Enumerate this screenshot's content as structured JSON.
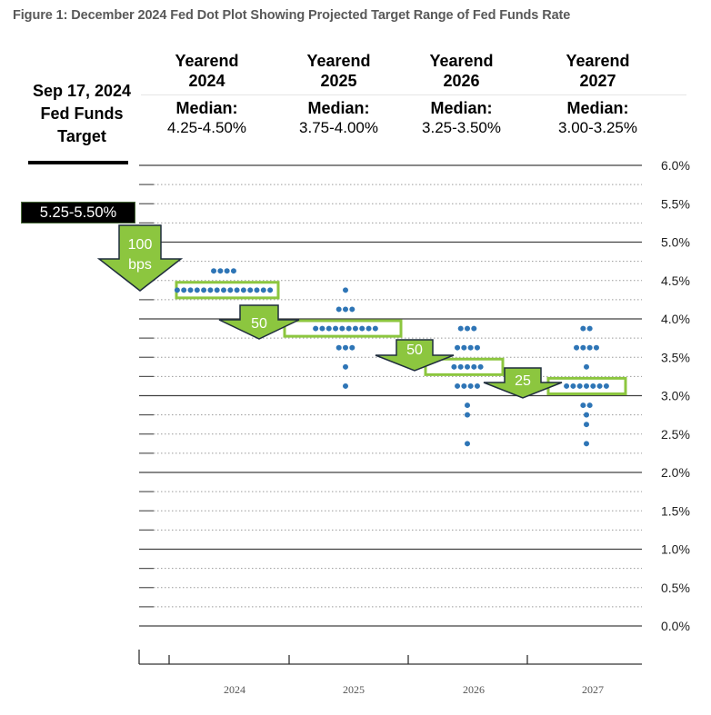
{
  "title": "Figure 1: December 2024 Fed Dot Plot Showing Projected Target Range of Fed Funds Rate",
  "current_target": {
    "label_lines": [
      "Sep 17, 2024",
      "Fed Funds",
      "Target"
    ],
    "value": "5.25-5.50%"
  },
  "columns": [
    {
      "yearend": "Yearend",
      "year": "2024",
      "median_label": "Median:",
      "median": "4.25-4.50%"
    },
    {
      "yearend": "Yearend",
      "year": "2025",
      "median_label": "Median:",
      "median": "3.75-4.00%"
    },
    {
      "yearend": "Yearend",
      "year": "2026",
      "median_label": "Median:",
      "median": "3.25-3.50%"
    },
    {
      "yearend": "Yearend",
      "year": "2027",
      "median_label": "Median:",
      "median": "3.00-3.25%"
    }
  ],
  "colors": {
    "dot": "#2e75b6",
    "arrow_fill": "#8cc63f",
    "arrow_stroke": "#1f2d3d",
    "median_box": "#8cc63f",
    "grid_solid": "#404040",
    "grid_dotted": "#9a9a9a"
  },
  "arrows": [
    {
      "label_lines": [
        "100",
        "bps"
      ],
      "from": "current",
      "to": "2024"
    },
    {
      "label_lines": [
        "50"
      ],
      "from": "2024",
      "to": "2025"
    },
    {
      "label_lines": [
        "50"
      ],
      "from": "2025",
      "to": "2026"
    },
    {
      "label_lines": [
        "25"
      ],
      "from": "2026",
      "to": "2027"
    }
  ],
  "chart_data": {
    "type": "scatter",
    "title": "Figure 1: December 2024 Fed Dot Plot Showing Projected Target Range of Fed Funds Rate",
    "xlabel": "",
    "ylabel": "",
    "categories": [
      "2024",
      "2025",
      "2026",
      "2027"
    ],
    "ylim": [
      0,
      6
    ],
    "yticks": [
      "0.0%",
      "0.5%",
      "1.0%",
      "1.5%",
      "2.0%",
      "2.5%",
      "3.0%",
      "3.5%",
      "4.0%",
      "4.5%",
      "5.0%",
      "5.5%",
      "6.0%"
    ],
    "y_axis_side": "right",
    "grid": "solid at whole percent, dotted at 0.25% steps",
    "series": [
      {
        "name": "2024",
        "dots": [
          {
            "value": 4.625,
            "count": 4
          },
          {
            "value": 4.375,
            "count": 15
          }
        ]
      },
      {
        "name": "2025",
        "dots": [
          {
            "value": 4.375,
            "count": 1
          },
          {
            "value": 4.125,
            "count": 3
          },
          {
            "value": 3.875,
            "count": 10
          },
          {
            "value": 3.625,
            "count": 3
          },
          {
            "value": 3.375,
            "count": 1
          },
          {
            "value": 3.125,
            "count": 1
          }
        ]
      },
      {
        "name": "2026",
        "dots": [
          {
            "value": 3.875,
            "count": 3
          },
          {
            "value": 3.625,
            "count": 4
          },
          {
            "value": 3.375,
            "count": 5
          },
          {
            "value": 3.125,
            "count": 4
          },
          {
            "value": 2.875,
            "count": 1
          },
          {
            "value": 2.75,
            "count": 1
          },
          {
            "value": 2.375,
            "count": 1
          }
        ]
      },
      {
        "name": "2027",
        "dots": [
          {
            "value": 3.875,
            "count": 2
          },
          {
            "value": 3.625,
            "count": 4
          },
          {
            "value": 3.375,
            "count": 1
          },
          {
            "value": 3.125,
            "count": 7
          },
          {
            "value": 2.875,
            "count": 2
          },
          {
            "value": 2.75,
            "count": 1
          },
          {
            "value": 2.625,
            "count": 1
          },
          {
            "value": 2.375,
            "count": 1
          }
        ]
      }
    ],
    "medians": [
      {
        "year": "2024",
        "range": [
          4.25,
          4.5
        ]
      },
      {
        "year": "2025",
        "range": [
          3.75,
          4.0
        ]
      },
      {
        "year": "2026",
        "range": [
          3.25,
          3.5
        ]
      },
      {
        "year": "2027",
        "range": [
          3.0,
          3.25
        ]
      }
    ],
    "current_target_range": [
      5.25,
      5.5
    ],
    "annotations": [
      "100 bps",
      "50",
      "50",
      "25"
    ]
  }
}
